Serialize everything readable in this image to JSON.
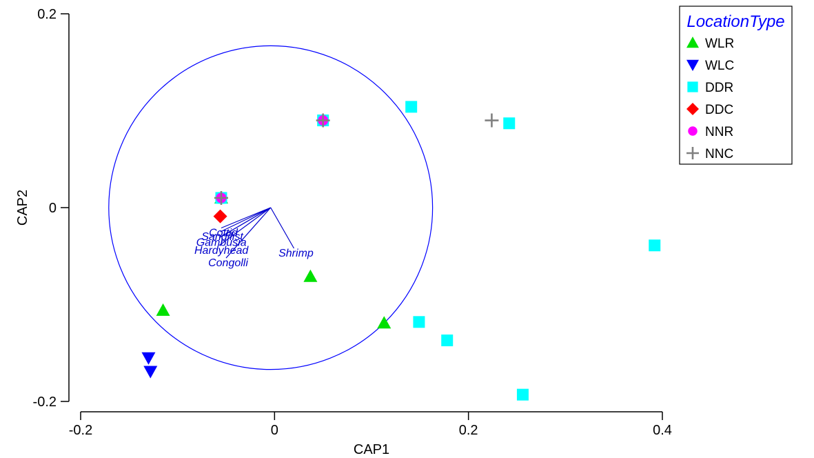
{
  "chart_data": {
    "type": "scatter",
    "xlabel": "CAP1",
    "ylabel": "CAP2",
    "xlim": [
      -0.2,
      0.4
    ],
    "ylim": [
      -0.2,
      0.2
    ],
    "xticks": [
      {
        "value": -0.2,
        "label": "-0.2"
      },
      {
        "value": 0,
        "label": "0"
      },
      {
        "value": 0.2,
        "label": "0.2"
      },
      {
        "value": 0.4,
        "label": "0.4"
      }
    ],
    "yticks": [
      {
        "value": 0.2,
        "label": "0.2"
      },
      {
        "value": 0,
        "label": "0"
      },
      {
        "value": -0.2,
        "label": "-0.2"
      }
    ],
    "grid": false,
    "legend_title": "LocationType",
    "legend_position": "top-right",
    "series": [
      {
        "name": "WLR",
        "marker": "triangle-up",
        "color": "#00e000",
        "points": [
          [
            -0.055,
            0.01
          ],
          [
            -0.115,
            -0.106
          ],
          [
            0.037,
            -0.071
          ],
          [
            0.113,
            -0.119
          ]
        ]
      },
      {
        "name": "WLC",
        "marker": "triangle-down",
        "color": "#0000ff",
        "points": [
          [
            -0.13,
            -0.155
          ],
          [
            -0.128,
            -0.169
          ]
        ]
      },
      {
        "name": "DDR",
        "marker": "square",
        "color": "#00ffff",
        "points": [
          [
            -0.055,
            0.01
          ],
          [
            0.05,
            0.09
          ],
          [
            0.141,
            0.104
          ],
          [
            0.242,
            0.087
          ],
          [
            0.392,
            -0.039
          ],
          [
            0.149,
            -0.118
          ],
          [
            0.178,
            -0.137
          ],
          [
            0.256,
            -0.193
          ]
        ]
      },
      {
        "name": "DDC",
        "marker": "diamond",
        "color": "#ff0000",
        "points": [
          [
            -0.056,
            -0.009
          ]
        ]
      },
      {
        "name": "NNR",
        "marker": "circle",
        "color": "#ff00ff",
        "points": [
          [
            -0.055,
            0.01
          ],
          [
            0.05,
            0.09
          ]
        ]
      },
      {
        "name": "NNC",
        "marker": "plus",
        "color": "#808080",
        "points": [
          [
            -0.055,
            0.01
          ],
          [
            0.05,
            0.09
          ],
          [
            0.224,
            0.09
          ]
        ]
      }
    ],
    "circle": {
      "center": [
        -0.004,
        0
      ],
      "radius": 0.167,
      "color": "#0000ff"
    },
    "vectors": [
      {
        "label": "Cottid",
        "end": [
          -0.055,
          -0.021
        ]
      },
      {
        "label": "Sandilist",
        "end": [
          -0.056,
          -0.025
        ]
      },
      {
        "label": "Gambusia",
        "end": [
          -0.057,
          -0.031
        ]
      },
      {
        "label": "Hardyhead",
        "end": [
          -0.057,
          -0.039
        ]
      },
      {
        "label": "Congolli",
        "end": [
          -0.05,
          -0.052
        ]
      },
      {
        "label": "Shrimp",
        "end": [
          0.02,
          -0.042
        ]
      }
    ]
  }
}
